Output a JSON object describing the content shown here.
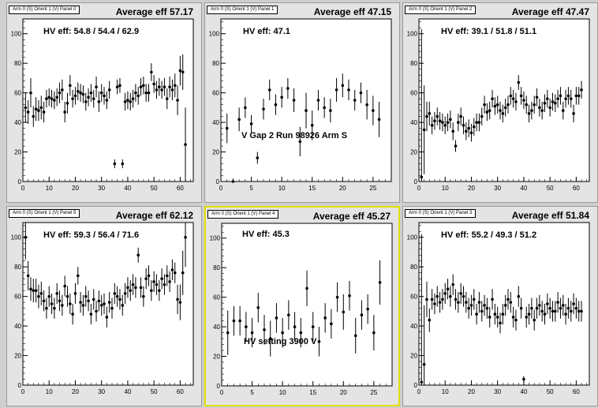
{
  "colors": {
    "background": "#cfcfcf",
    "pad": "#e4e4e4",
    "selected_border": "#e0e000",
    "marker": "#000000"
  },
  "chart_data": [
    {
      "type": "scatter",
      "tag": "Arm 0 (S) Orient 1 (V) Panel 0",
      "title": "Average eff 57.17",
      "hv_text": "HV eff:   54.8 / 54.4 / 62.9",
      "annotation": "",
      "xlim": [
        0,
        65
      ],
      "ylim": [
        0,
        110
      ],
      "xticks": [
        0,
        10,
        20,
        30,
        40,
        50,
        60
      ],
      "yticks": [
        0,
        20,
        40,
        60,
        80,
        100
      ],
      "series": [
        {
          "x": [
            1,
            2,
            3,
            4,
            5,
            6,
            7,
            8,
            9,
            10,
            11,
            12,
            13,
            14,
            15,
            16,
            17,
            18,
            19,
            20,
            21,
            22,
            23,
            24,
            25,
            26,
            27,
            28,
            29,
            30,
            31,
            32,
            33,
            35,
            36,
            37,
            38,
            39,
            40,
            41,
            42,
            43,
            44,
            45,
            46,
            47,
            48,
            49,
            50,
            51,
            52,
            53,
            54,
            55,
            56,
            57,
            58,
            59,
            60,
            61,
            62
          ],
          "y": [
            50,
            47,
            60,
            44,
            49,
            48,
            50,
            47,
            56,
            57,
            56,
            55,
            57,
            60,
            62,
            47,
            53,
            65,
            56,
            58,
            61,
            60,
            59,
            54,
            57,
            60,
            56,
            64,
            54,
            60,
            58,
            55,
            62,
            12,
            64,
            65,
            12,
            54,
            55,
            54,
            56,
            60,
            58,
            64,
            65,
            60,
            60,
            74,
            66,
            62,
            64,
            62,
            64,
            56,
            64,
            62,
            65,
            55,
            75,
            74,
            25
          ],
          "err": [
            10,
            8,
            10,
            7,
            8,
            7,
            8,
            7,
            6,
            6,
            6,
            6,
            6,
            7,
            7,
            7,
            7,
            7,
            6,
            6,
            6,
            6,
            6,
            6,
            6,
            6,
            6,
            7,
            7,
            6,
            6,
            6,
            6,
            3,
            5,
            5,
            3,
            6,
            6,
            6,
            6,
            6,
            6,
            6,
            6,
            6,
            6,
            6,
            6,
            6,
            6,
            6,
            6,
            7,
            7,
            7,
            8,
            10,
            10,
            12,
            25
          ]
        }
      ]
    },
    {
      "type": "scatter",
      "tag": "Arm 0 (S) Orient 1 (V) Panel 1",
      "title": "Average eff 47.15",
      "hv_text": "HV eff:   47.1",
      "annotation": "V Gap 2 Run 98926 Arm S",
      "xlim": [
        0,
        28
      ],
      "ylim": [
        0,
        110
      ],
      "xticks": [
        0,
        5,
        10,
        15,
        20,
        25
      ],
      "yticks": [
        0,
        20,
        40,
        60,
        80,
        100
      ],
      "series": [
        {
          "x": [
            1,
            2,
            3,
            4,
            5,
            6,
            7,
            8,
            9,
            10,
            11,
            12,
            13,
            14,
            15,
            16,
            17,
            18,
            19,
            20,
            21,
            22,
            23,
            24,
            25,
            26
          ],
          "y": [
            36,
            0,
            42,
            50,
            39,
            16,
            49,
            62,
            52,
            57,
            63,
            55,
            27,
            48,
            38,
            55,
            50,
            48,
            62,
            65,
            62,
            55,
            60,
            52,
            48,
            42
          ],
          "err": [
            10,
            2,
            8,
            7,
            6,
            4,
            7,
            7,
            7,
            7,
            7,
            8,
            10,
            12,
            10,
            7,
            7,
            8,
            8,
            8,
            7,
            7,
            7,
            10,
            10,
            12
          ]
        }
      ]
    },
    {
      "type": "scatter",
      "tag": "Arm 0 (S) Orient 1 (V) Panel 2",
      "title": "Average eff 47.47",
      "hv_text": "HV eff:   39.1 / 51.8 / 51.1",
      "annotation": "",
      "xlim": [
        0,
        65
      ],
      "ylim": [
        0,
        110
      ],
      "xticks": [
        0,
        10,
        20,
        30,
        40,
        50,
        60
      ],
      "yticks": [
        0,
        20,
        40,
        60,
        80,
        100
      ],
      "series": [
        {
          "x": [
            1,
            2,
            3,
            4,
            5,
            6,
            7,
            8,
            9,
            10,
            11,
            12,
            13,
            14,
            15,
            16,
            17,
            18,
            19,
            20,
            21,
            22,
            23,
            24,
            25,
            26,
            27,
            28,
            29,
            30,
            31,
            32,
            33,
            34,
            35,
            36,
            37,
            38,
            39,
            40,
            41,
            42,
            43,
            44,
            45,
            46,
            47,
            48,
            49,
            50,
            51,
            52,
            53,
            54,
            55,
            56,
            57,
            58,
            59,
            60,
            61,
            62
          ],
          "y": [
            3,
            35,
            44,
            46,
            38,
            41,
            44,
            41,
            40,
            38,
            40,
            42,
            34,
            24,
            40,
            44,
            38,
            34,
            36,
            33,
            37,
            40,
            40,
            44,
            52,
            47,
            48,
            56,
            51,
            52,
            48,
            46,
            50,
            52,
            58,
            56,
            54,
            67,
            58,
            55,
            52,
            46,
            48,
            52,
            57,
            50,
            48,
            53,
            56,
            50,
            54,
            53,
            56,
            58,
            48,
            56,
            58,
            56,
            46,
            58,
            58,
            62
          ],
          "err": [
            100,
            30,
            10,
            8,
            6,
            6,
            6,
            6,
            6,
            6,
            6,
            6,
            6,
            4,
            6,
            6,
            6,
            6,
            6,
            6,
            6,
            6,
            6,
            6,
            6,
            6,
            6,
            6,
            6,
            6,
            6,
            6,
            6,
            6,
            6,
            6,
            6,
            5,
            6,
            6,
            6,
            6,
            6,
            6,
            6,
            6,
            6,
            6,
            6,
            6,
            6,
            6,
            6,
            6,
            6,
            6,
            6,
            6,
            6,
            6,
            6,
            6
          ]
        }
      ]
    },
    {
      "type": "scatter",
      "tag": "Arm 0 (S) Orient 1 (V) Panel 5",
      "title": "Average eff 62.12",
      "hv_text": "HV eff:   59.3 / 56.4 / 71.6",
      "annotation": "",
      "xlim": [
        0,
        65
      ],
      "ylim": [
        0,
        110
      ],
      "xticks": [
        0,
        10,
        20,
        30,
        40,
        50,
        60
      ],
      "yticks": [
        0,
        20,
        40,
        60,
        80,
        100
      ],
      "series": [
        {
          "x": [
            1,
            2,
            3,
            4,
            5,
            6,
            7,
            8,
            9,
            10,
            11,
            12,
            13,
            14,
            15,
            16,
            17,
            18,
            19,
            20,
            21,
            22,
            23,
            24,
            25,
            26,
            27,
            28,
            29,
            30,
            31,
            32,
            33,
            34,
            35,
            36,
            37,
            38,
            39,
            40,
            41,
            42,
            43,
            44,
            45,
            46,
            47,
            48,
            49,
            50,
            51,
            52,
            53,
            54,
            55,
            56,
            57,
            58,
            59,
            60,
            61,
            62
          ],
          "y": [
            100,
            74,
            65,
            64,
            64,
            60,
            62,
            57,
            52,
            60,
            55,
            52,
            62,
            57,
            54,
            67,
            60,
            55,
            48,
            62,
            74,
            56,
            54,
            60,
            57,
            48,
            58,
            50,
            57,
            54,
            55,
            46,
            56,
            52,
            62,
            60,
            58,
            54,
            62,
            66,
            64,
            68,
            66,
            88,
            66,
            60,
            72,
            74,
            64,
            70,
            68,
            64,
            72,
            68,
            74,
            70,
            78,
            76,
            58,
            56,
            76,
            100
          ],
          "err": [
            15,
            10,
            8,
            8,
            8,
            8,
            8,
            7,
            7,
            7,
            7,
            7,
            7,
            7,
            7,
            7,
            7,
            7,
            7,
            7,
            6,
            7,
            7,
            7,
            7,
            7,
            7,
            7,
            7,
            7,
            7,
            7,
            7,
            7,
            7,
            7,
            7,
            7,
            7,
            7,
            7,
            7,
            7,
            5,
            7,
            7,
            7,
            7,
            7,
            7,
            7,
            7,
            7,
            7,
            7,
            7,
            7,
            7,
            10,
            12,
            15,
            20
          ]
        }
      ]
    },
    {
      "type": "scatter",
      "tag": "Arm 0 (S) Orient 1 (V) Panel 4",
      "title": "Average eff 45.27",
      "hv_text": "HV eff:   45.3",
      "annotation": "HV setting 3900 V",
      "xlim": [
        0,
        28
      ],
      "ylim": [
        0,
        110
      ],
      "xticks": [
        0,
        5,
        10,
        15,
        20,
        25
      ],
      "yticks": [
        0,
        20,
        40,
        60,
        80,
        100
      ],
      "series": [
        {
          "x": [
            1,
            2,
            3,
            4,
            5,
            6,
            7,
            8,
            9,
            10,
            11,
            12,
            13,
            14,
            15,
            16,
            17,
            18,
            19,
            20,
            21,
            22,
            23,
            24,
            25,
            26
          ],
          "y": [
            36,
            44,
            44,
            40,
            36,
            53,
            38,
            32,
            46,
            36,
            48,
            40,
            36,
            66,
            40,
            30,
            46,
            42,
            60,
            50,
            61,
            34,
            48,
            52,
            36,
            70
          ],
          "err": [
            15,
            10,
            10,
            10,
            10,
            10,
            10,
            12,
            10,
            10,
            10,
            10,
            10,
            12,
            10,
            10,
            10,
            10,
            10,
            12,
            10,
            12,
            10,
            10,
            12,
            15
          ]
        }
      ]
    },
    {
      "type": "scatter",
      "tag": "Arm 0 (S) Orient 1 (V) Panel 3",
      "title": "Average eff 51.84",
      "hv_text": "HV eff:   55.2 / 49.3 / 51.2",
      "annotation": "",
      "xlim": [
        0,
        65
      ],
      "ylim": [
        0,
        110
      ],
      "xticks": [
        0,
        10,
        20,
        30,
        40,
        50,
        60
      ],
      "yticks": [
        0,
        20,
        40,
        60,
        80,
        100
      ],
      "series": [
        {
          "x": [
            1,
            2,
            3,
            4,
            5,
            6,
            7,
            8,
            9,
            10,
            11,
            12,
            13,
            14,
            15,
            16,
            17,
            18,
            19,
            20,
            21,
            22,
            23,
            24,
            25,
            26,
            27,
            28,
            29,
            30,
            31,
            32,
            33,
            34,
            35,
            36,
            37,
            38,
            39,
            40,
            41,
            42,
            43,
            44,
            45,
            46,
            47,
            48,
            49,
            50,
            51,
            52,
            53,
            54,
            55,
            56,
            57,
            58,
            59,
            60,
            61,
            62
          ],
          "y": [
            2,
            14,
            58,
            44,
            58,
            55,
            60,
            56,
            58,
            62,
            65,
            60,
            68,
            58,
            56,
            62,
            60,
            56,
            52,
            54,
            58,
            48,
            56,
            50,
            54,
            52,
            46,
            58,
            48,
            46,
            42,
            48,
            54,
            58,
            56,
            46,
            44,
            60,
            52,
            4,
            46,
            48,
            52,
            44,
            52,
            54,
            50,
            48,
            55,
            52,
            50,
            50,
            56,
            52,
            54,
            48,
            52,
            50,
            55,
            52,
            50,
            50
          ],
          "err": [
            100,
            40,
            12,
            8,
            7,
            7,
            7,
            7,
            7,
            7,
            7,
            7,
            7,
            7,
            7,
            7,
            7,
            7,
            7,
            7,
            7,
            7,
            7,
            7,
            7,
            7,
            7,
            7,
            7,
            7,
            7,
            7,
            7,
            7,
            7,
            7,
            7,
            7,
            7,
            2,
            7,
            7,
            7,
            7,
            7,
            7,
            7,
            7,
            7,
            7,
            7,
            7,
            7,
            7,
            7,
            7,
            7,
            7,
            7,
            7,
            7,
            7
          ]
        }
      ]
    }
  ]
}
